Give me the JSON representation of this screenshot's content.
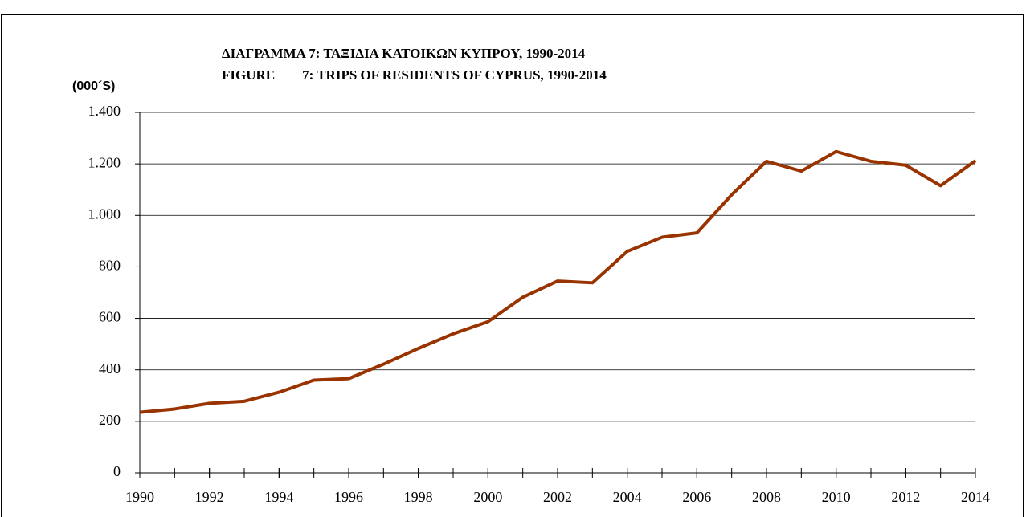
{
  "chart_data": {
    "type": "line",
    "title": "ΔΙΑΓΡΑΜΜΑ 7: ΤΑΞΙΔΙΑ ΚΑΤΟΙΚΩΝ ΚΥΠΡΟΥ, 1990-2014",
    "subtitle": "FIGURE        7: TRIPS OF RESIDENTS OF CYPRUS, 1990-2014",
    "y_label": "(000´S)",
    "x": [
      1990,
      1991,
      1992,
      1993,
      1994,
      1995,
      1996,
      1997,
      1998,
      1999,
      2000,
      2001,
      2002,
      2003,
      2004,
      2005,
      2006,
      2007,
      2008,
      2009,
      2010,
      2011,
      2012,
      2013,
      2014
    ],
    "series": [
      {
        "name": "Trips",
        "color": "#993300",
        "values": [
          235,
          248,
          270,
          278,
          313,
          360,
          366,
          422,
          483,
          540,
          587,
          682,
          745,
          738,
          860,
          915,
          932,
          1080,
          1210,
          1172,
          1248,
          1210,
          1195,
          1115,
          1212
        ]
      }
    ],
    "xlim": [
      1990,
      2014
    ],
    "xticks": [
      1990,
      1992,
      1994,
      1996,
      1998,
      2000,
      2002,
      2004,
      2006,
      2008,
      2010,
      2012,
      2014
    ],
    "ylim": [
      0,
      1400
    ],
    "yticks": [
      0,
      200,
      400,
      600,
      800,
      {
        "value": 1000,
        "label": "1.000"
      },
      {
        "value": 1200,
        "label": "1.200"
      },
      {
        "value": 1400,
        "label": "1.400"
      }
    ],
    "grid": true
  }
}
